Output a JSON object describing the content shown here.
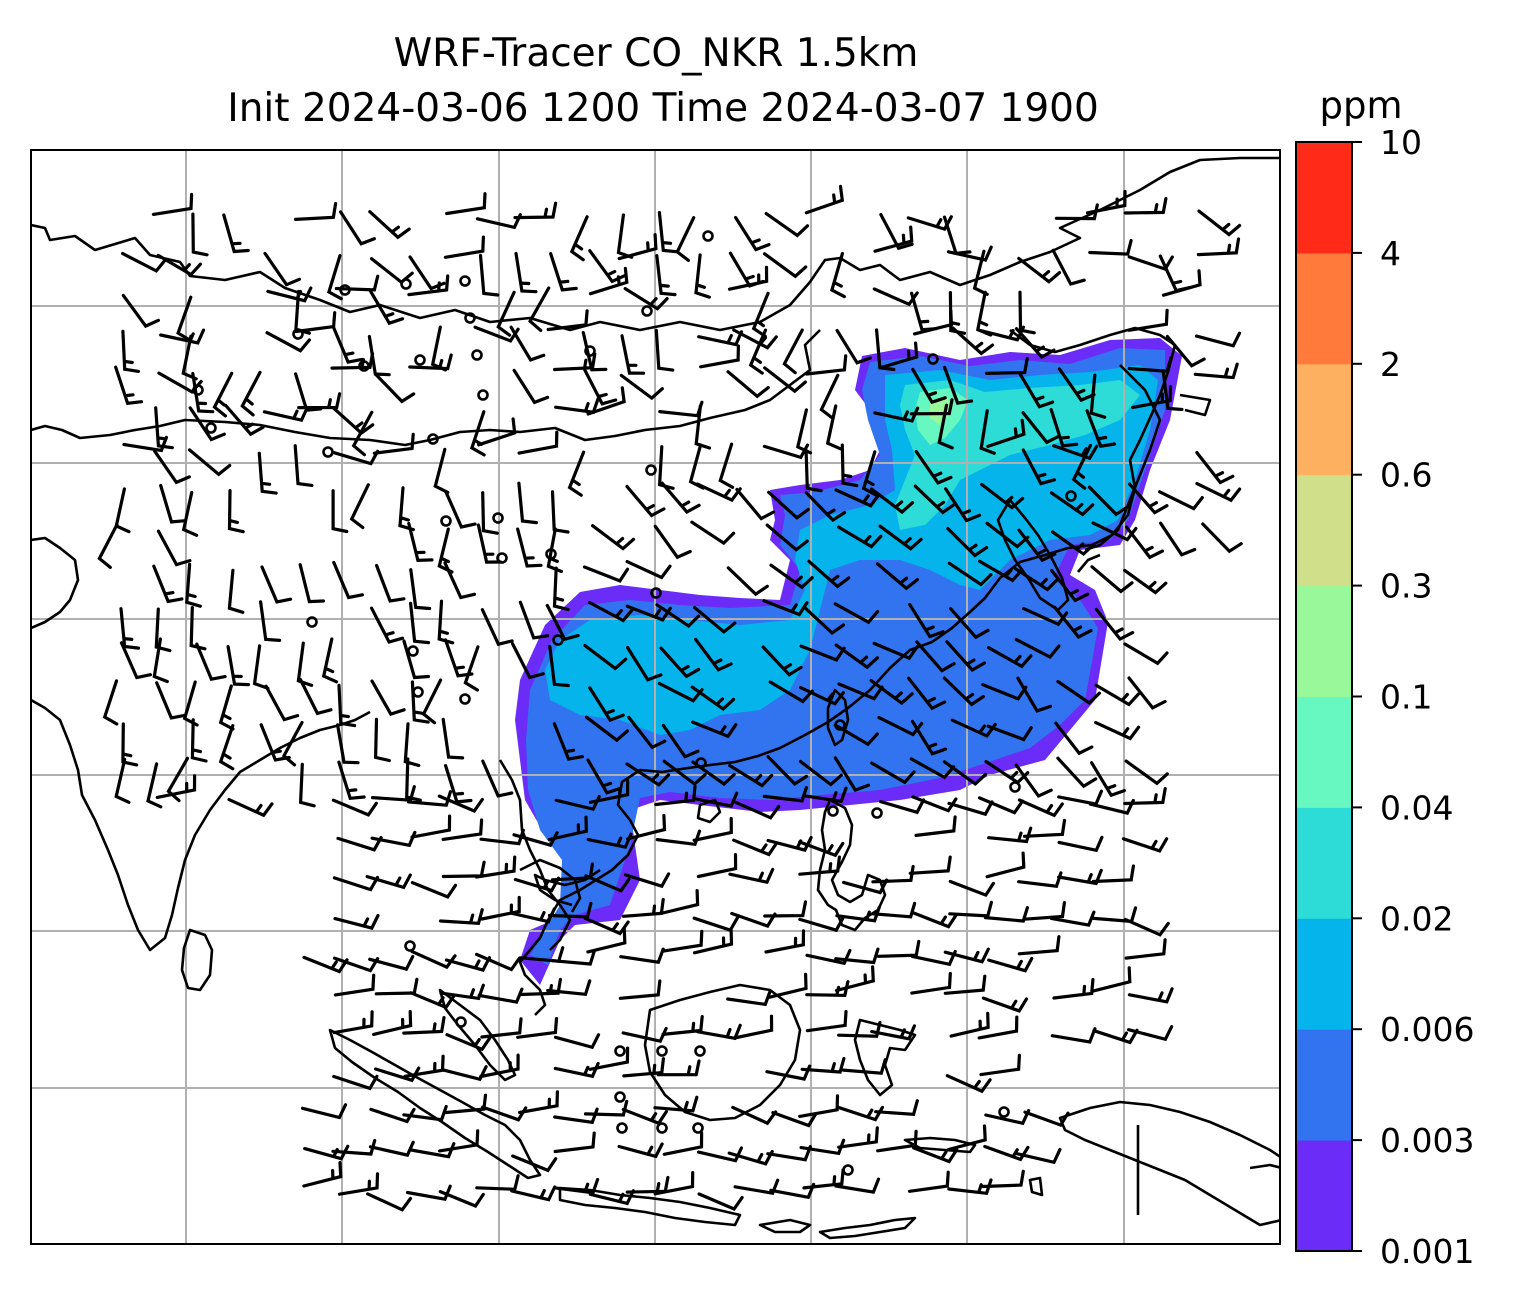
{
  "title": {
    "line1": "WRF-Tracer CO_NKR 1.5km",
    "line2": "Init 2024-03-06 1200 Time 2024-03-07 1900"
  },
  "colorbar": {
    "unit": "ppm",
    "levels": [
      "0.001",
      "0.003",
      "0.006",
      "0.02",
      "0.04",
      "0.1",
      "0.3",
      "0.6",
      "2",
      "4",
      "10"
    ],
    "colors": [
      "#6a2cf6",
      "#3273f0",
      "#05b4ea",
      "#2ddcd7",
      "#66f8c0",
      "#99f99a",
      "#d0e08a",
      "#fdb060",
      "#ff7a3b",
      "#ff2a18"
    ]
  },
  "map": {
    "gridlines": "on",
    "coastline_color": "#000000",
    "gridline_color": "#b0b0b0",
    "wind_barbs": "on"
  }
}
